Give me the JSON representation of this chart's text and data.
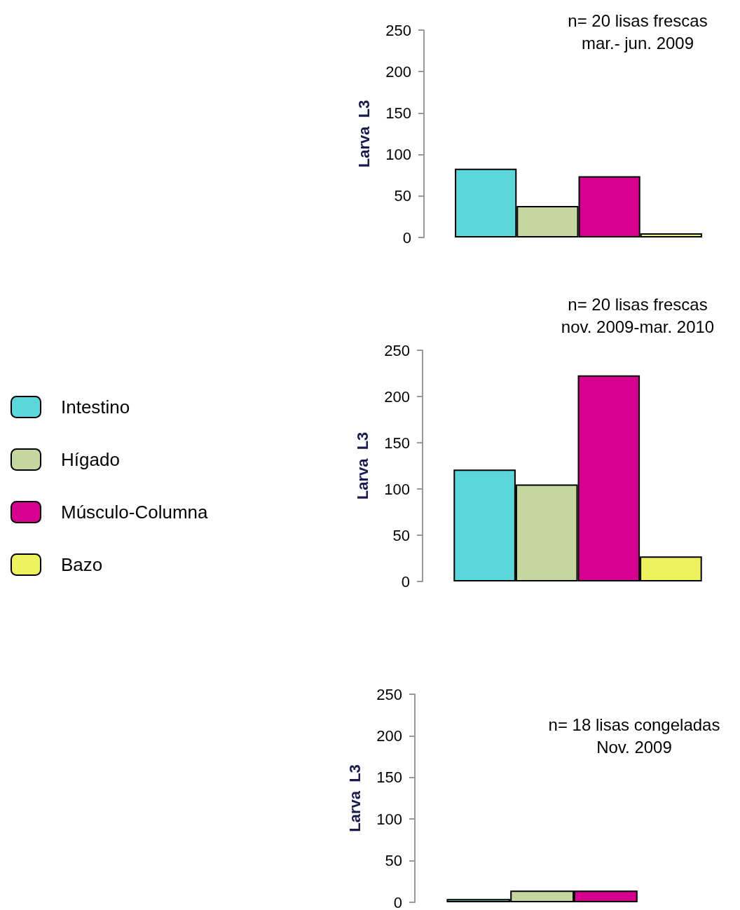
{
  "chart_data": [
    {
      "type": "bar",
      "title": "n= 20 lisas frescas",
      "subtitle": "mar.- jun. 2009",
      "ylabel": "Larva  L3",
      "categories": [
        null
      ],
      "series": [
        {
          "color": "#5bd7db",
          "values": [
            83
          ]
        },
        {
          "color": "#c5d79e",
          "values": [
            38
          ]
        },
        {
          "color": "#d50090",
          "values": [
            74
          ]
        },
        {
          "color": "#eef25e",
          "values": [
            5
          ]
        }
      ],
      "ylim": [
        0,
        250
      ],
      "yticks": [
        0,
        50,
        100,
        150,
        200,
        250
      ],
      "grid": false,
      "legend": false
    },
    {
      "type": "bar",
      "title": "n= 20 lisas frescas",
      "subtitle": "nov. 2009-mar. 2010",
      "ylabel": "Larva  L3",
      "categories": [
        null
      ],
      "series": [
        {
          "name": "Intestino",
          "color": "#5bd7db",
          "values": [
            121
          ]
        },
        {
          "name": "Hígado",
          "color": "#c5d79e",
          "values": [
            105
          ]
        },
        {
          "name": "Músculo-Columna",
          "color": "#d50090",
          "values": [
            223
          ]
        },
        {
          "name": "Bazo",
          "color": "#eef25e",
          "values": [
            27
          ]
        }
      ],
      "ylim": [
        0,
        250
      ],
      "yticks": [
        0,
        50,
        100,
        150,
        200,
        250
      ],
      "grid": false,
      "legend": "left"
    },
    {
      "type": "bar",
      "title": "n= 18 lisas congeladas",
      "subtitle": "Nov. 2009",
      "ylabel": "Larva  L3",
      "categories": [
        null
      ],
      "series": [
        {
          "color": "#5bd7db",
          "values": [
            4
          ]
        },
        {
          "color": "#c5d79e",
          "values": [
            14
          ]
        },
        {
          "color": "#d50090",
          "values": [
            14
          ]
        },
        {
          "color": "#eef25e",
          "values": [
            0
          ]
        }
      ],
      "ylim": [
        0,
        250
      ],
      "yticks": [
        0,
        50,
        100,
        150,
        200,
        250
      ],
      "grid": false,
      "legend": false
    }
  ]
}
